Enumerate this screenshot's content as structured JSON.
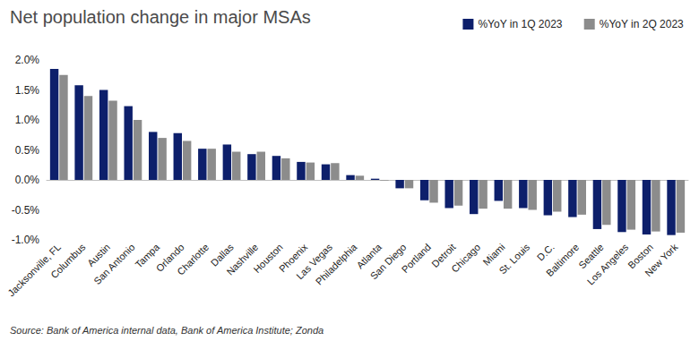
{
  "chart_data": {
    "type": "bar",
    "title": "Net population change in major MSAs",
    "source": "Source: Bank of America internal data, Bank of America Institute; Zonda",
    "categories": [
      "Jacksonville, FL",
      "Columbus",
      "Austin",
      "San Antonio",
      "Tampa",
      "Orlando",
      "Charlotte",
      "Dallas",
      "Nashville",
      "Houston",
      "Phoenix",
      "Las Vegas",
      "Philadelphia",
      "Atlanta",
      "San Diego",
      "Portland",
      "Detroit",
      "Chicago",
      "Miami",
      "St. Louis",
      "D.C.",
      "Baltimore",
      "Seattle",
      "Los Angeles",
      "Boston",
      "New York"
    ],
    "series": [
      {
        "name": "%YoY in 1Q 2023",
        "color": "#0d1f6b",
        "values": [
          1.85,
          1.58,
          1.5,
          1.23,
          0.8,
          0.78,
          0.52,
          0.59,
          0.43,
          0.4,
          0.3,
          0.26,
          0.08,
          0.02,
          -0.14,
          -0.34,
          -0.47,
          -0.57,
          -0.35,
          -0.47,
          -0.59,
          -0.62,
          -0.82,
          -0.87,
          -0.91,
          -0.92
        ]
      },
      {
        "name": "%YoY in 2Q 2023",
        "color": "#8c8c8c",
        "values": [
          1.75,
          1.4,
          1.32,
          1.0,
          0.7,
          0.65,
          0.52,
          0.47,
          0.47,
          0.36,
          0.29,
          0.28,
          0.07,
          -0.01,
          -0.14,
          -0.38,
          -0.43,
          -0.48,
          -0.48,
          -0.5,
          -0.53,
          -0.58,
          -0.75,
          -0.83,
          -0.86,
          -0.88
        ]
      }
    ],
    "ylim": [
      -1.0,
      2.0
    ],
    "yticks": [
      {
        "value": -1.0,
        "label": "-1.0%"
      },
      {
        "value": -0.5,
        "label": "-0.5%"
      },
      {
        "value": 0,
        "label": "0.0%"
      },
      {
        "value": 0.5,
        "label": "0.5%"
      },
      {
        "value": 1.0,
        "label": "1.0%"
      },
      {
        "value": 1.5,
        "label": "1.5%"
      },
      {
        "value": 2.0,
        "label": "2.0%"
      }
    ],
    "grid": false,
    "legend": "top-right",
    "data_labels": false
  }
}
